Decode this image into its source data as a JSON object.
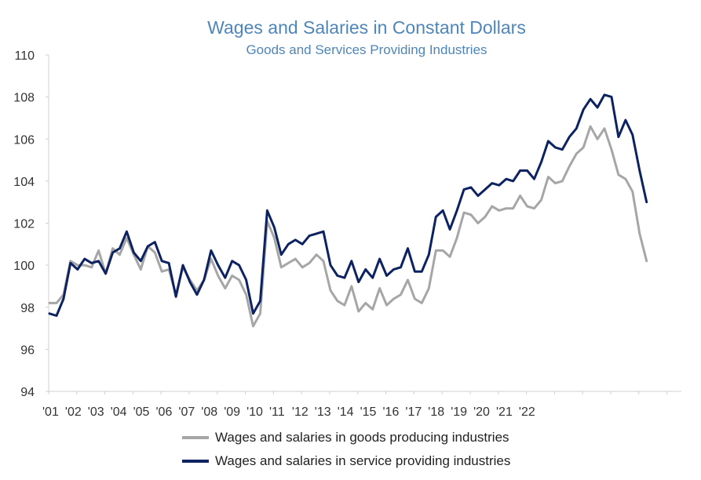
{
  "chart_data": {
    "type": "line",
    "title": "Wages and Salaries in Constant Dollars",
    "subtitle": "Goods and Services Providing Industries",
    "xlabel": "",
    "ylabel": "",
    "ylim": [
      94,
      110
    ],
    "yticks": [
      94,
      96,
      98,
      100,
      102,
      104,
      106,
      108,
      110
    ],
    "xtick_labels": [
      "'01",
      "'02",
      "'03",
      "'04",
      "'05",
      "'06",
      "'07",
      "'08",
      "'09",
      "'10",
      "'11",
      "'12",
      "'13",
      "'14",
      "'15",
      "'16",
      "'17",
      "'18",
      "'19",
      "'20",
      "'21",
      "'22"
    ],
    "x_period": "quarterly, 2001 Q1 to 2023 Q3",
    "grid": false,
    "legend_position": "bottom",
    "series": [
      {
        "name": "Wages and salaries in goods producing industries",
        "color": "#a6a6a6",
        "values": [
          98.2,
          98.2,
          98.6,
          100.2,
          100.0,
          100.0,
          99.9,
          100.7,
          99.6,
          100.8,
          100.5,
          101.3,
          100.5,
          99.8,
          100.9,
          100.6,
          99.7,
          99.8,
          98.6,
          99.9,
          99.3,
          98.8,
          99.3,
          100.3,
          99.5,
          98.9,
          99.5,
          99.3,
          98.6,
          97.1,
          97.7,
          102.1,
          101.3,
          99.9,
          100.1,
          100.3,
          99.9,
          100.1,
          100.5,
          100.2,
          98.8,
          98.3,
          98.1,
          99.0,
          97.8,
          98.2,
          97.9,
          98.9,
          98.1,
          98.4,
          98.6,
          99.3,
          98.4,
          98.2,
          98.9,
          100.7,
          100.7,
          100.4,
          101.3,
          102.5,
          102.4,
          102.0,
          102.3,
          102.8,
          102.6,
          102.7,
          102.7,
          103.3,
          102.8,
          102.7,
          103.1,
          104.2,
          103.9,
          104.0,
          104.7,
          105.3,
          105.6,
          106.6,
          106.0,
          106.5,
          105.5,
          104.3,
          104.1,
          103.5,
          101.5,
          100.2
        ]
      },
      {
        "name": "Wages and salaries in service providing industries",
        "color": "#0d2260",
        "values": [
          97.7,
          97.6,
          98.4,
          100.1,
          99.8,
          100.3,
          100.1,
          100.2,
          99.6,
          100.6,
          100.8,
          101.6,
          100.6,
          100.2,
          100.9,
          101.1,
          100.2,
          100.1,
          98.5,
          100.0,
          99.2,
          98.6,
          99.3,
          100.7,
          100.0,
          99.4,
          100.2,
          100.0,
          99.3,
          97.7,
          98.3,
          102.6,
          101.8,
          100.5,
          101.0,
          101.2,
          101.0,
          101.4,
          101.5,
          101.6,
          100.0,
          99.5,
          99.4,
          100.2,
          99.2,
          99.8,
          99.4,
          100.3,
          99.5,
          99.8,
          99.9,
          100.8,
          99.7,
          99.7,
          100.5,
          102.3,
          102.6,
          101.7,
          102.6,
          103.6,
          103.7,
          103.3,
          103.6,
          103.9,
          103.8,
          104.1,
          104.0,
          104.5,
          104.5,
          104.1,
          104.9,
          105.9,
          105.6,
          105.5,
          106.1,
          106.5,
          107.4,
          107.9,
          107.5,
          108.1,
          108.0,
          106.1,
          106.9,
          106.2,
          104.5,
          103.0
        ]
      }
    ]
  }
}
